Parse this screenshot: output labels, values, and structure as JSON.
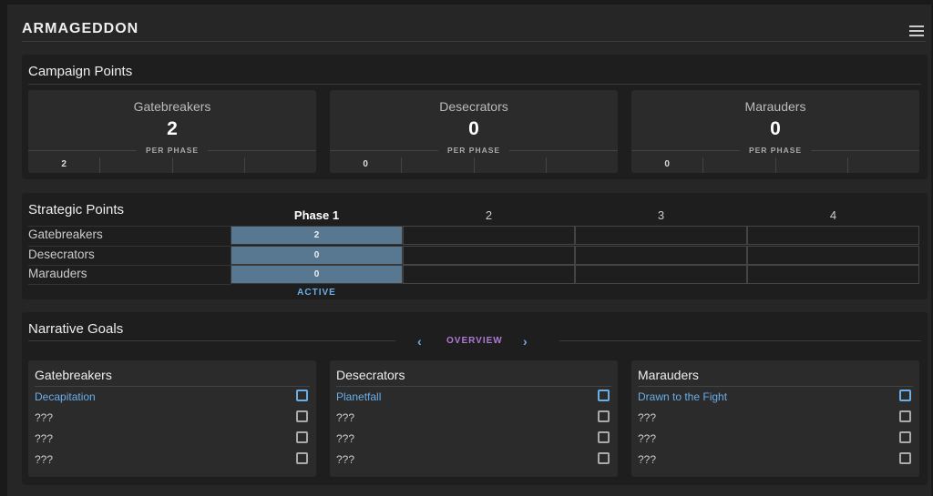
{
  "header": {
    "title": "ARMAGEDDON",
    "menu_icon": "hamburger-menu-icon"
  },
  "campaign": {
    "title": "Campaign Points",
    "per_phase_label": "PER PHASE",
    "factions": [
      {
        "name": "Gatebreakers",
        "total": "2",
        "phases": [
          "2",
          "",
          "",
          ""
        ]
      },
      {
        "name": "Desecrators",
        "total": "0",
        "phases": [
          "0",
          "",
          "",
          ""
        ]
      },
      {
        "name": "Marauders",
        "total": "0",
        "phases": [
          "0",
          "",
          "",
          ""
        ]
      }
    ]
  },
  "strategic": {
    "title": "Strategic Points",
    "phases": [
      "Phase 1",
      "2",
      "3",
      "4"
    ],
    "active_phase": 1,
    "active_label": "ACTIVE",
    "active_color": "#587791",
    "rows": [
      {
        "name": "Gatebreakers",
        "values": [
          "2",
          "",
          "",
          ""
        ]
      },
      {
        "name": "Desecrators",
        "values": [
          "0",
          "",
          "",
          ""
        ]
      },
      {
        "name": "Marauders",
        "values": [
          "0",
          "",
          "",
          ""
        ]
      }
    ]
  },
  "narrative": {
    "title": "Narrative Goals",
    "nav_label": "OVERVIEW",
    "accent": "#6aaee8",
    "factions": [
      {
        "name": "Gatebreakers",
        "goals": [
          {
            "label": "Decapitation",
            "checked": false
          },
          {
            "label": "???",
            "checked": false
          },
          {
            "label": "???",
            "checked": false
          },
          {
            "label": "???",
            "checked": false
          }
        ]
      },
      {
        "name": "Desecrators",
        "goals": [
          {
            "label": "Planetfall",
            "checked": false
          },
          {
            "label": "???",
            "checked": false
          },
          {
            "label": "???",
            "checked": false
          },
          {
            "label": "???",
            "checked": false
          }
        ]
      },
      {
        "name": "Marauders",
        "goals": [
          {
            "label": "Drawn to the Fight",
            "checked": false
          },
          {
            "label": "???",
            "checked": false
          },
          {
            "label": "???",
            "checked": false
          },
          {
            "label": "???",
            "checked": false
          }
        ]
      }
    ]
  }
}
